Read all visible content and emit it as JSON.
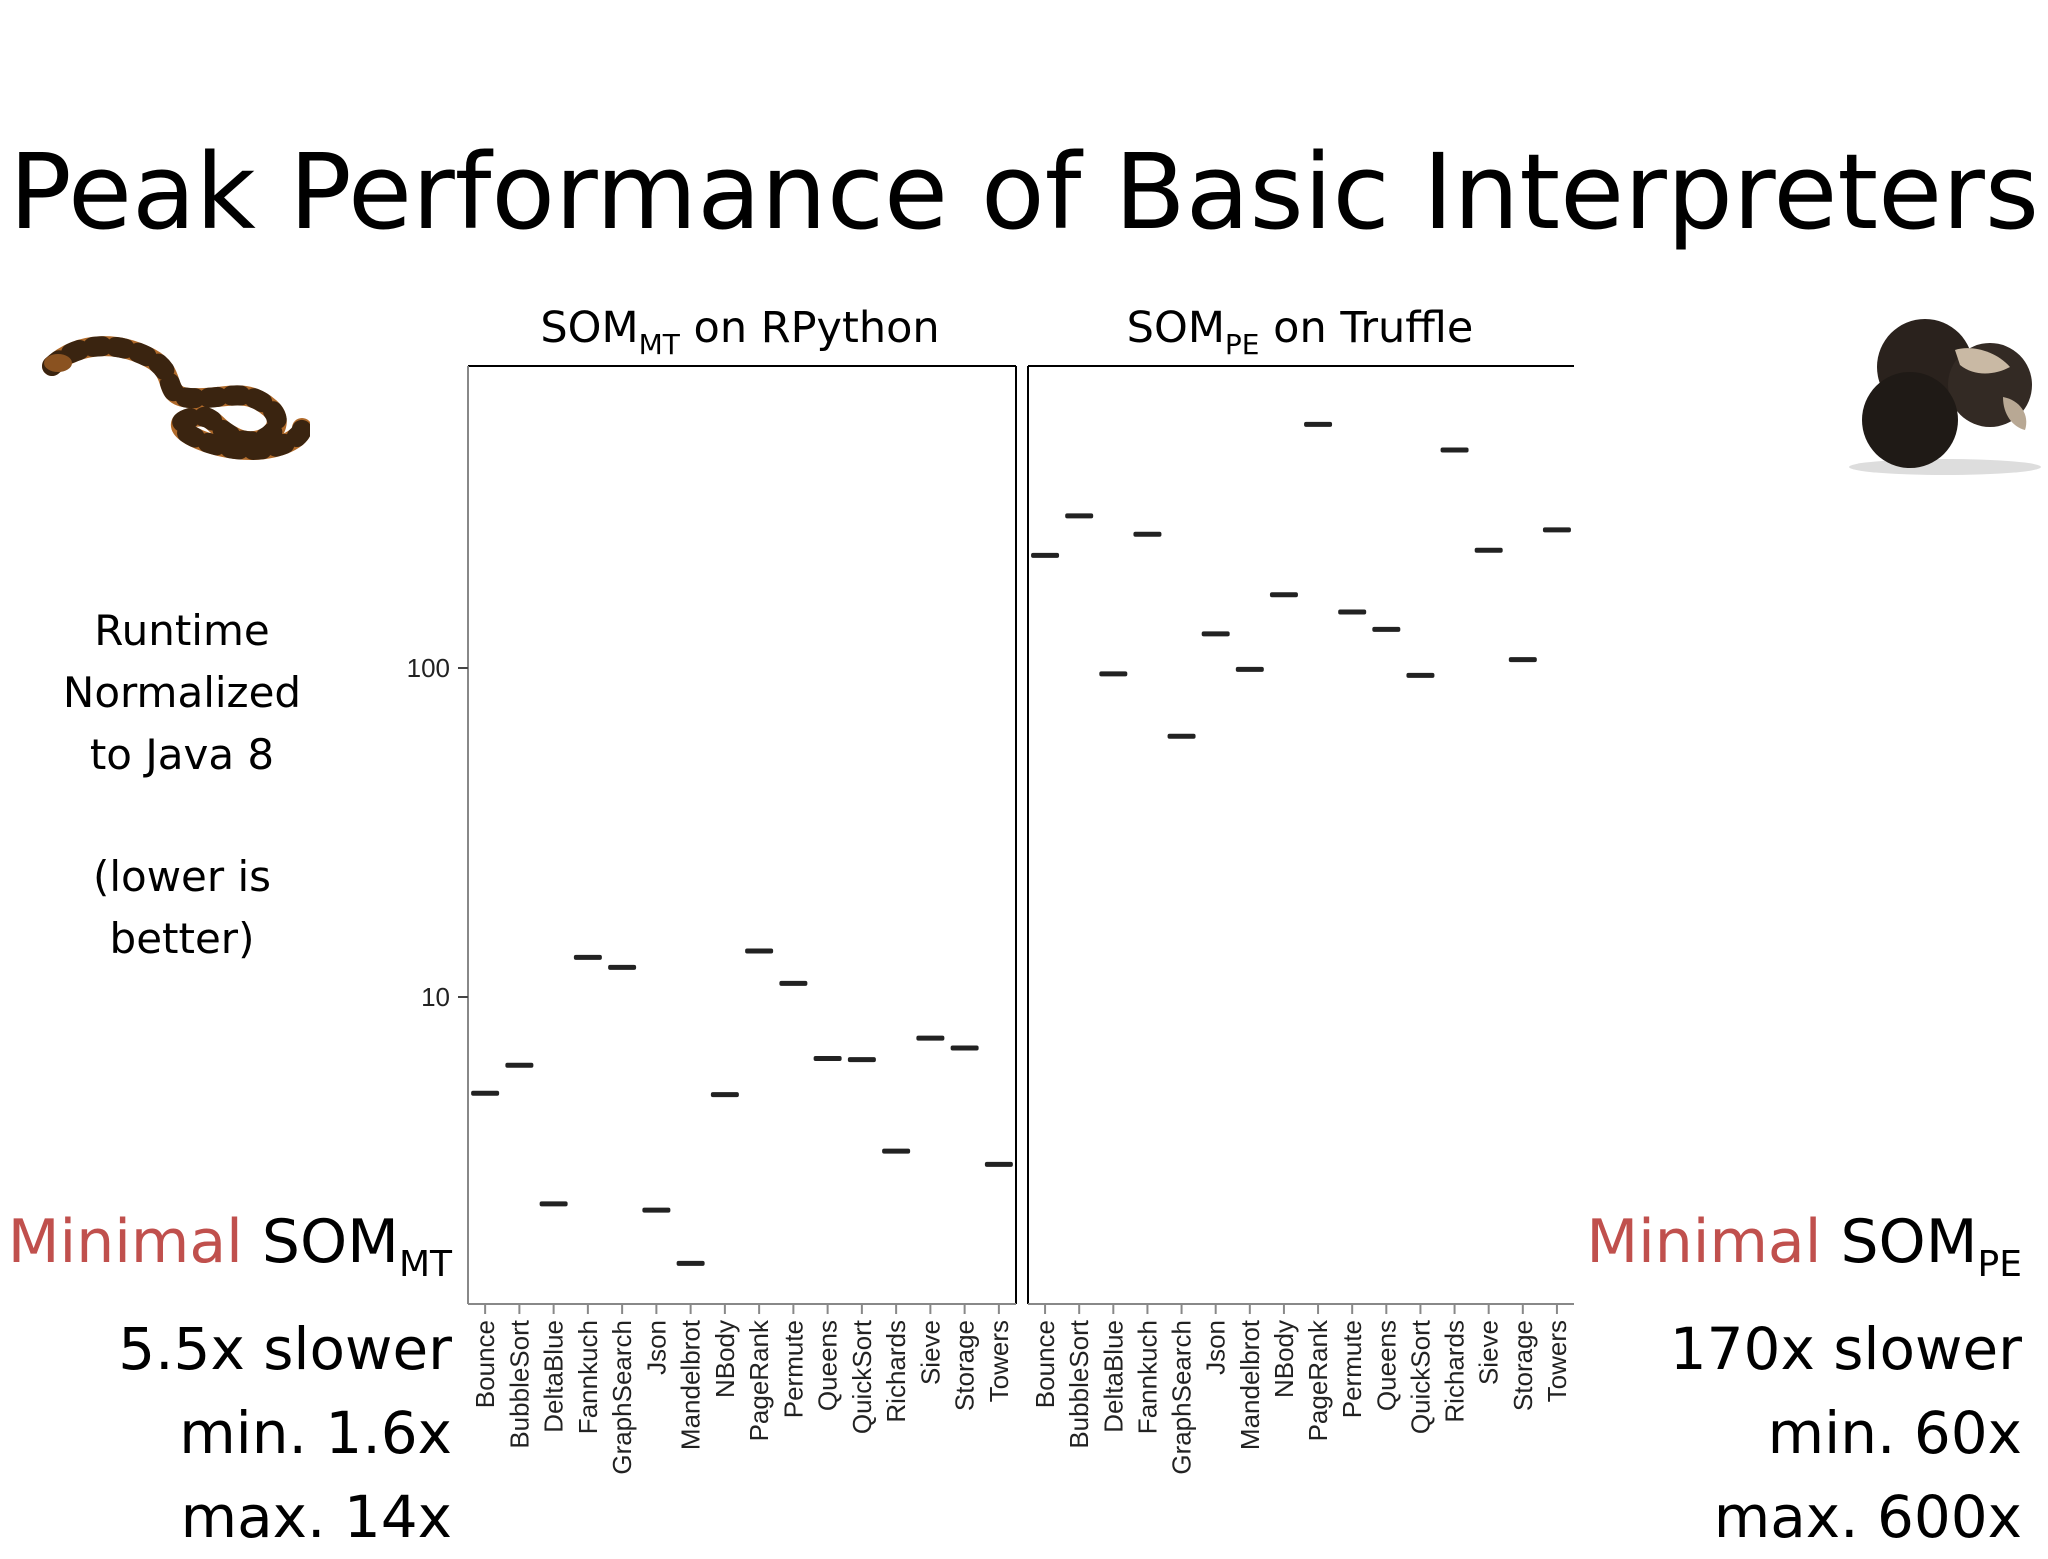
{
  "slide": {
    "title": "Peak Performance of Basic Interpreters",
    "ylabel_lines": [
      "Runtime",
      "Normalized",
      "to Java 8"
    ],
    "note_lines": [
      "(lower is",
      "better)"
    ]
  },
  "panels": [
    {
      "prefix": "SOM",
      "subscript": "MT",
      "suffix": " on RPython"
    },
    {
      "prefix": "SOM",
      "subscript": "PE",
      "suffix": " on Truffle"
    }
  ],
  "summaries": [
    {
      "accent": "Minimal",
      "name": " SOM",
      "subscript": "MT",
      "lines": [
        "5.5x slower",
        "min. 1.6x",
        "max. 14x"
      ]
    },
    {
      "accent": "Minimal",
      "name": " SOM",
      "subscript": "PE",
      "lines": [
        "170x slower",
        "min. 60x",
        "max. 600x"
      ]
    }
  ],
  "colors": {
    "accent": "#c0504d",
    "box": "#222222",
    "frame": "#000000",
    "axis": "#888888"
  },
  "icons": {
    "left": "snake-icon",
    "right": "truffle-icon"
  },
  "chart_data": {
    "type": "box",
    "yscale": "log",
    "ylim": [
      1.4,
      900
    ],
    "yticks": [
      10,
      100
    ],
    "ytick_labels": [
      "10",
      "100"
    ],
    "categories": [
      "Bounce",
      "BubbleSort",
      "DeltaBlue",
      "Fannkuch",
      "GraphSearch",
      "Json",
      "Mandelbrot",
      "NBody",
      "PageRank",
      "Permute",
      "Queens",
      "QuickSort",
      "Richards",
      "Sieve",
      "Storage",
      "Towers"
    ],
    "series": [
      {
        "name": "SOM_MT on RPython",
        "values": [
          5.1,
          6.2,
          2.35,
          13.2,
          12.3,
          2.25,
          1.55,
          5.05,
          13.8,
          11.0,
          6.5,
          6.45,
          3.4,
          7.5,
          7.0,
          3.1
        ]
      },
      {
        "name": "SOM_PE on Truffle",
        "values": [
          220,
          290,
          96,
          255,
          62,
          127,
          99,
          167,
          550,
          148,
          131,
          95,
          460,
          228,
          106,
          263
        ]
      }
    ]
  }
}
